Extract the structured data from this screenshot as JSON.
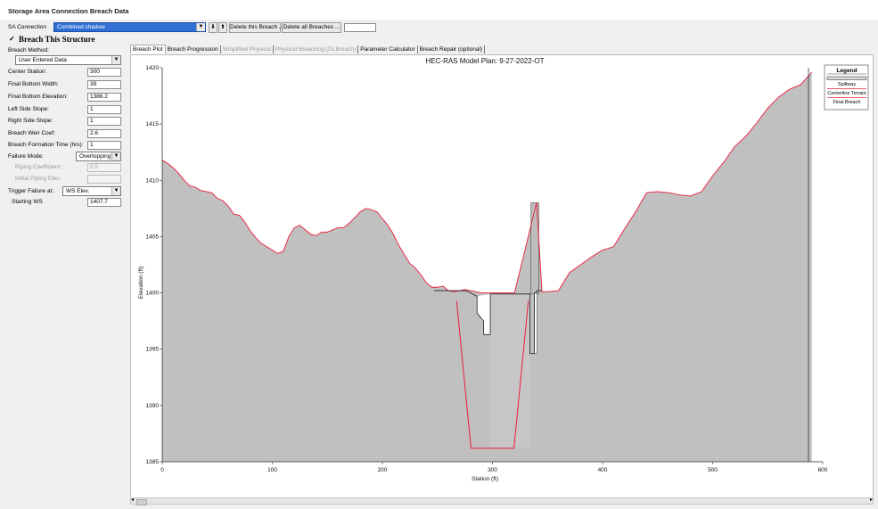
{
  "window": {
    "title": "Storage Area Connection Breach Data"
  },
  "toolbar": {
    "sa_connection_label": "SA Connection",
    "sa_connection_value": "Combined shadow",
    "move_down_glyph": "⬇",
    "move_up_glyph": "⬆",
    "delete_breach_label": "Delete this Breach ...",
    "delete_all_label": "Delete all Breaches ..."
  },
  "left_panel": {
    "breach_checkbox_mark": "✓",
    "breach_structure_label": "Breach This Structure",
    "breach_method_label": "Breach Method:",
    "breach_method_value": "User Entered Data",
    "center_station_label": "Center Station:",
    "center_station_value": "300",
    "final_bottom_width_label": "Final Bottom Width:",
    "final_bottom_width_value": "39",
    "final_bottom_elev_label": "Final Bottom Elevation:",
    "final_bottom_elev_value": "1386.2",
    "left_side_slope_label": "Left Side Slope:",
    "left_side_slope_value": "1",
    "right_side_slope_label": "Right Side Slope:",
    "right_side_slope_value": "1",
    "weir_coef_label": "Breach Weir Coef:",
    "weir_coef_value": "2.6",
    "formation_time_label": "Breach Formation Time (hrs):",
    "formation_time_value": "1",
    "failure_mode_label": "Failure Mode:",
    "failure_mode_value": "Overtopping",
    "piping_coef_label": "Piping Coefficient:",
    "piping_coef_value": "0.5",
    "initial_piping_label": "Initial Piping Elev.:",
    "initial_piping_value": "",
    "trigger_label": "Trigger Failure at:",
    "trigger_value": "WS Elev.",
    "starting_ws_label": "Starting WS",
    "starting_ws_value": "1407.7"
  },
  "tabs": [
    {
      "label": "Breach Plot",
      "state": "active"
    },
    {
      "label": "Breach Progression",
      "state": "enabled"
    },
    {
      "label": "Simplified Physical",
      "state": "disabled"
    },
    {
      "label": "Physical Breaching (DLBreach)",
      "state": "disabled"
    },
    {
      "label": "Parameter Calculator",
      "state": "enabled"
    },
    {
      "label": "Breach Repair (optional)",
      "state": "enabled"
    }
  ],
  "colors": {
    "terrain_fill": "#c0c0c0",
    "centerline_line": "#ec1c3c",
    "final_breach_line": "#ec1c3c",
    "spillway_line": "#222222"
  },
  "chart_data": {
    "type": "area",
    "title": "HEC-RAS Model     Plan: 9-27-2022-OT",
    "xlabel": "Station (ft)",
    "ylabel": "Elevation (ft)",
    "xlim": [
      0,
      600
    ],
    "ylim": [
      1385,
      1420
    ],
    "xticks": [
      0,
      100,
      200,
      300,
      400,
      500,
      600
    ],
    "yticks": [
      1385,
      1390,
      1395,
      1400,
      1405,
      1410,
      1415,
      1420
    ],
    "grid": false,
    "legend_position": "top-right",
    "legend_title": "Legend",
    "series": [
      {
        "name": "Spillway",
        "style": "double-line",
        "x": [
          247,
          276,
          286,
          286,
          292,
          292,
          298,
          298,
          334,
          334,
          338,
          338,
          340,
          340,
          345
        ],
        "y": [
          1400.2,
          1400.2,
          1399.7,
          1398.2,
          1397.5,
          1396.3,
          1396.3,
          1399.9,
          1399.9,
          1394.6,
          1394.6,
          1400.0,
          1400.0,
          1400.2,
          1400.2
        ]
      },
      {
        "name": "Centerline Terrain",
        "style": "red-line-gray-fill",
        "x": [
          0,
          5,
          10,
          15,
          20,
          25,
          30,
          35,
          40,
          45,
          50,
          55,
          60,
          65,
          70,
          75,
          80,
          85,
          90,
          95,
          100,
          105,
          110,
          115,
          120,
          125,
          130,
          135,
          140,
          145,
          150,
          155,
          160,
          165,
          170,
          175,
          180,
          185,
          190,
          195,
          200,
          205,
          210,
          215,
          220,
          225,
          230,
          235,
          240,
          245,
          250,
          255,
          260,
          265,
          270,
          275,
          280,
          290,
          300,
          320,
          340,
          345,
          350,
          360,
          370,
          380,
          390,
          400,
          410,
          420,
          430,
          440,
          450,
          460,
          470,
          480,
          490,
          500,
          510,
          520,
          530,
          540,
          550,
          560,
          570,
          580,
          590
        ],
        "y": [
          1411.8,
          1411.5,
          1411.1,
          1410.6,
          1410.0,
          1409.5,
          1409.4,
          1409.1,
          1409.0,
          1408.9,
          1408.4,
          1408.2,
          1407.7,
          1407.0,
          1406.9,
          1406.3,
          1405.5,
          1404.9,
          1404.4,
          1404.1,
          1403.8,
          1403.5,
          1403.7,
          1405.0,
          1405.8,
          1406.0,
          1405.6,
          1405.2,
          1405.1,
          1405.4,
          1405.4,
          1405.6,
          1405.8,
          1405.8,
          1406.2,
          1406.7,
          1407.2,
          1407.5,
          1407.4,
          1407.2,
          1406.6,
          1406.0,
          1405.2,
          1404.2,
          1403.4,
          1402.6,
          1402.2,
          1401.6,
          1400.9,
          1400.5,
          1400.5,
          1400.6,
          1400.2,
          1400.1,
          1400.2,
          1400.3,
          1400.2,
          1400.0,
          1400.0,
          1400.0,
          1408.0,
          1400.1,
          1400.1,
          1400.2,
          1401.8,
          1402.5,
          1403.2,
          1403.8,
          1404.1,
          1405.7,
          1407.2,
          1408.9,
          1409.0,
          1408.9,
          1408.7,
          1408.6,
          1409.0,
          1410.4,
          1411.6,
          1413.0,
          1413.9,
          1415.1,
          1416.4,
          1417.4,
          1418.1,
          1418.5,
          1419.6
        ]
      },
      {
        "name": "Final Breach",
        "style": "red-line",
        "x": [
          267.4,
          280.5,
          319.5,
          332.6
        ],
        "y": [
          1399.3,
          1386.2,
          1386.2,
          1399.3
        ]
      }
    ],
    "structure": {
      "weir_block": {
        "x": [
          298,
          334
        ],
        "y": [
          1386.2,
          1399.9
        ]
      },
      "gate_block": {
        "x": [
          335,
          342
        ],
        "y": [
          1399.9,
          1408.0
        ]
      },
      "piping_opening": {
        "x": [
          338,
          340
        ],
        "y": [
          1394.6,
          1400.0
        ]
      }
    }
  }
}
